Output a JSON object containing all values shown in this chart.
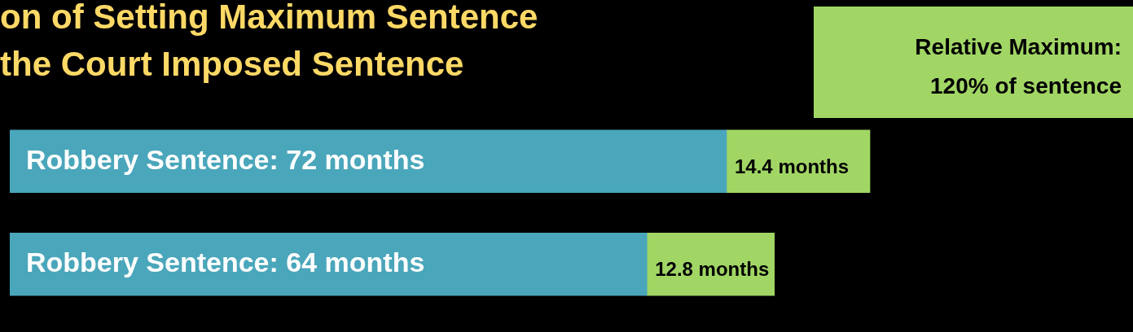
{
  "chart_data": {
    "type": "bar",
    "orientation": "horizontal",
    "stacked": true,
    "title": "on of Setting Maximum Sentence\nthe Court Imposed Sentence",
    "categories": [
      null,
      null
    ],
    "series": [
      {
        "color": "#4aa6bb",
        "values": [
          72,
          64
        ],
        "value_labels": [
          "Robbery Sentence: 72 months",
          "Robbery Sentence: 64 months"
        ]
      },
      {
        "color": "#a1d665",
        "values": [
          14.4,
          12.8
        ],
        "value_labels": [
          "14.4 months",
          "12.8 months"
        ]
      }
    ],
    "annotations": [
      "Relative Maximum: 120% of sentence"
    ],
    "legend": false
  }
}
